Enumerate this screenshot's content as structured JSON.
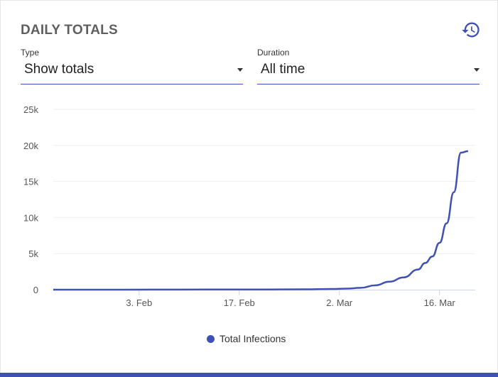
{
  "card": {
    "title": "DAILY TOTALS",
    "history_icon": "history-icon"
  },
  "filters": {
    "type": {
      "label": "Type",
      "value": "Show totals"
    },
    "duration": {
      "label": "Duration",
      "value": "All time"
    }
  },
  "colors": {
    "accent": "#3f51b5",
    "grid": "#eeeeee",
    "axis_text": "#555555"
  },
  "chart_data": {
    "type": "line",
    "title": "",
    "xlabel": "",
    "ylabel": "",
    "ylim": [
      0,
      25000
    ],
    "y_ticks": [
      0,
      5000,
      10000,
      15000,
      20000,
      25000
    ],
    "y_tick_labels": [
      "0",
      "5k",
      "10k",
      "15k",
      "20k",
      "25k"
    ],
    "x_ticks": [
      "2020-02-03",
      "2020-02-17",
      "2020-03-02",
      "2020-03-16"
    ],
    "x_tick_labels": [
      "3. Feb",
      "17. Feb",
      "2. Mar",
      "16. Mar"
    ],
    "xlim": [
      "2020-01-22",
      "2020-03-21"
    ],
    "grid": true,
    "legend": "bottom-center",
    "series": [
      {
        "name": "Total Infections",
        "color": "#3f51b5",
        "x": [
          "2020-01-22",
          "2020-01-29",
          "2020-02-05",
          "2020-02-12",
          "2020-02-19",
          "2020-02-26",
          "2020-03-01",
          "2020-03-03",
          "2020-03-05",
          "2020-03-07",
          "2020-03-09",
          "2020-03-11",
          "2020-03-13",
          "2020-03-14",
          "2020-03-15",
          "2020-03-16",
          "2020-03-17",
          "2020-03-18",
          "2020-03-19",
          "2020-03-20"
        ],
        "y": [
          0,
          0,
          10,
          15,
          20,
          50,
          100,
          150,
          260,
          600,
          1100,
          1700,
          2800,
          3700,
          4600,
          6500,
          9200,
          13500,
          19000,
          19200
        ]
      }
    ]
  }
}
